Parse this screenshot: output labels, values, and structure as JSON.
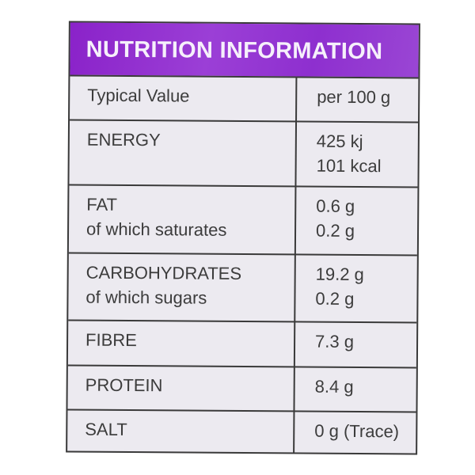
{
  "title": "NUTRITION INFORMATION",
  "colors": {
    "header": "#8e2fcf",
    "header_text": "#f6f0fb",
    "text": "#3c3c3c",
    "background": "#eceaf0"
  },
  "header_row": {
    "label": "Typical Value",
    "value": "per 100 g"
  },
  "rows": [
    {
      "label": "ENERGY",
      "sublabel": "",
      "value": "425 kj",
      "subvalue": "101 kcal"
    },
    {
      "label": "FAT",
      "sublabel": "of which saturates",
      "value": "0.6 g",
      "subvalue": "0.2 g"
    },
    {
      "label": "CARBOHYDRATES",
      "sublabel": "of which sugars",
      "value": "19.2 g",
      "subvalue": "0.2 g"
    },
    {
      "label": "FIBRE",
      "sublabel": "",
      "value": "7.3 g",
      "subvalue": ""
    },
    {
      "label": "PROTEIN",
      "sublabel": "",
      "value": "8.4 g",
      "subvalue": ""
    },
    {
      "label": "SALT",
      "sublabel": "",
      "value": "0 g (Trace)",
      "subvalue": ""
    }
  ]
}
